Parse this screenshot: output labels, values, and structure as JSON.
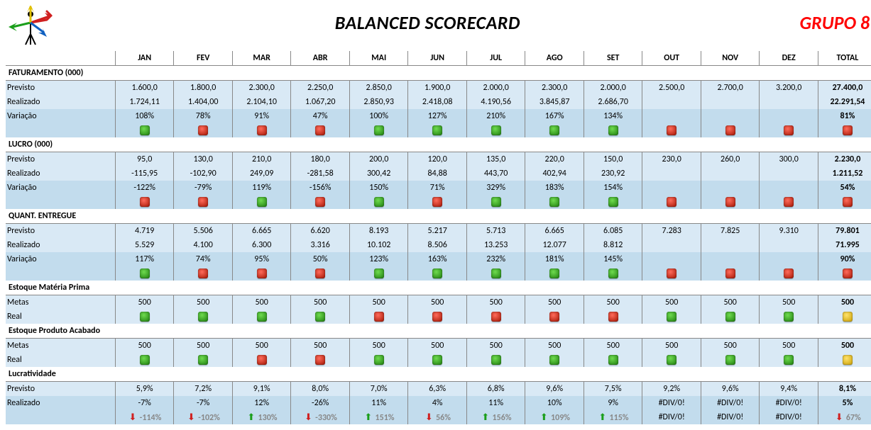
{
  "meta": {
    "title": "BALANCED SCORECARD",
    "group_label": "GRUPO 8"
  },
  "months": [
    "JAN",
    "FEV",
    "MAR",
    "ABR",
    "MAI",
    "JUN",
    "JUL",
    "AGO",
    "SET",
    "OUT",
    "NOV",
    "DEZ",
    "TOTAL"
  ],
  "row_labels": {
    "previsto": "Previsto",
    "realizado": "Realizado",
    "variacao": "Variação",
    "metas": "Metas",
    "real": "Real"
  },
  "colors": {
    "title": "#000000",
    "group": "#ff0000",
    "row_light": "#d9e9f5",
    "row_med": "#c2dced",
    "border": "#888888",
    "indicator_green_light": "#6fdb4f",
    "indicator_green_dark": "#1a7a0c",
    "indicator_red_light": "#ff6b5b",
    "indicator_red_dark": "#a01200",
    "indicator_yellow_light": "#ffe26b",
    "indicator_yellow_dark": "#c79d00",
    "arrow_up": "#1a9e1a",
    "arrow_down": "#d02020",
    "gray_text": "#888888",
    "logo_arrow_red": "#d02020",
    "logo_arrow_green": "#1a9e1a",
    "logo_arrow_yellow": "#e0c000",
    "logo_arrow_blue": "#1060c0"
  },
  "sections": [
    {
      "name": "FATURAMENTO (000)",
      "rows": [
        {
          "key": "previsto",
          "cells": [
            "1.600,0",
            "1.800,0",
            "2.300,0",
            "2.250,0",
            "2.850,0",
            "1.900,0",
            "2.000,0",
            "2.300,0",
            "2.000,0",
            "2.500,0",
            "2.700,0",
            "3.200,0",
            "27.400,0"
          ],
          "bold_last": true,
          "bg": "blue1"
        },
        {
          "key": "realizado",
          "cells": [
            "1.724,11",
            "1.404,00",
            "2.104,10",
            "1.067,20",
            "2.850,93",
            "2.418,08",
            "4.190,56",
            "3.845,87",
            "2.686,70",
            "",
            "",
            "",
            "22.291,54"
          ],
          "bold_last": true,
          "bg": "blue1"
        },
        {
          "key": "variacao",
          "cells": [
            "108%",
            "78%",
            "91%",
            "47%",
            "100%",
            "127%",
            "210%",
            "167%",
            "134%",
            "",
            "",
            "",
            "81%"
          ],
          "bold_last": true,
          "bg": "blue2"
        },
        {
          "key": "ind",
          "type": "indicator",
          "cells": [
            "green",
            "red",
            "red",
            "red",
            "green",
            "green",
            "green",
            "green",
            "green",
            "red",
            "red",
            "red",
            "red"
          ],
          "bg": "blue2"
        }
      ]
    },
    {
      "name": "LUCRO (000)",
      "rows": [
        {
          "key": "previsto",
          "cells": [
            "95,0",
            "130,0",
            "210,0",
            "180,0",
            "200,0",
            "120,0",
            "135,0",
            "220,0",
            "150,0",
            "230,0",
            "260,0",
            "300,0",
            "2.230,0"
          ],
          "bold_last": true,
          "bg": "blue1"
        },
        {
          "key": "realizado",
          "cells": [
            "-115,95",
            "-102,90",
            "249,09",
            "-281,58",
            "300,42",
            "84,88",
            "443,70",
            "402,94",
            "230,92",
            "",
            "",
            "",
            "1.211,52"
          ],
          "bold_last": true,
          "bg": "blue1"
        },
        {
          "key": "variacao",
          "cells": [
            "-122%",
            "-79%",
            "119%",
            "-156%",
            "150%",
            "71%",
            "329%",
            "183%",
            "154%",
            "",
            "",
            "",
            "54%"
          ],
          "bold_last": true,
          "bg": "blue2"
        },
        {
          "key": "ind",
          "type": "indicator",
          "cells": [
            "red",
            "red",
            "green",
            "red",
            "green",
            "red",
            "green",
            "green",
            "green",
            "red",
            "red",
            "red",
            "red"
          ],
          "bg": "blue2"
        }
      ]
    },
    {
      "name": "QUANT. ENTREGUE",
      "rows": [
        {
          "key": "previsto",
          "cells": [
            "4.719",
            "5.506",
            "6.665",
            "6.620",
            "8.193",
            "5.217",
            "5.713",
            "6.665",
            "6.085",
            "7.283",
            "7.825",
            "9.310",
            "79.801"
          ],
          "bold_last": true,
          "bg": "blue1"
        },
        {
          "key": "realizado",
          "cells": [
            "5.529",
            "4.100",
            "6.300",
            "3.316",
            "10.102",
            "8.506",
            "13.253",
            "12.077",
            "8.812",
            "",
            "",
            "",
            "71.995"
          ],
          "bold_last": true,
          "bg": "blue1"
        },
        {
          "key": "variacao",
          "cells": [
            "117%",
            "74%",
            "95%",
            "50%",
            "123%",
            "163%",
            "232%",
            "181%",
            "145%",
            "",
            "",
            "",
            "90%"
          ],
          "bold_last": true,
          "bg": "blue2"
        },
        {
          "key": "ind",
          "type": "indicator",
          "cells": [
            "green",
            "red",
            "red",
            "red",
            "green",
            "green",
            "green",
            "green",
            "green",
            "red",
            "red",
            "red",
            "red"
          ],
          "bg": "blue2"
        }
      ]
    },
    {
      "name": "Estoque  Matéria Prima",
      "rows": [
        {
          "key": "metas",
          "cells": [
            "500",
            "500",
            "500",
            "500",
            "500",
            "500",
            "500",
            "500",
            "500",
            "500",
            "500",
            "500",
            "500"
          ],
          "bold_last": true,
          "bg": "blue1"
        },
        {
          "key": "real",
          "type": "indicator",
          "cells": [
            "green",
            "green",
            "green",
            "green",
            "red",
            "red",
            "red",
            "red",
            "red",
            "green",
            "green",
            "green",
            "yellow"
          ],
          "bg": "blue1"
        }
      ]
    },
    {
      "name": "Estoque Produto Acabado",
      "rows": [
        {
          "key": "metas",
          "cells": [
            "500",
            "500",
            "500",
            "500",
            "500",
            "500",
            "500",
            "500",
            "500",
            "500",
            "500",
            "500",
            "500"
          ],
          "bold_last": true,
          "bg": "blue1"
        },
        {
          "key": "real",
          "type": "indicator",
          "cells": [
            "green",
            "green",
            "red",
            "red",
            "green",
            "green",
            "green",
            "green",
            "green",
            "green",
            "green",
            "green",
            "yellow"
          ],
          "bg": "blue1"
        }
      ]
    },
    {
      "name": "Lucratividade",
      "rows": [
        {
          "key": "previsto",
          "cells": [
            "5,9%",
            "7,2%",
            "9,1%",
            "8,0%",
            "7,0%",
            "6,3%",
            "6,8%",
            "9,6%",
            "7,5%",
            "9,2%",
            "9,6%",
            "9,4%",
            "8,1%"
          ],
          "bold_last": true,
          "bg": "blue1"
        },
        {
          "key": "realizado",
          "cells": [
            "-7%",
            "-7%",
            "12%",
            "-26%",
            "11%",
            "4%",
            "11%",
            "10%",
            "9%",
            "#DIV/0!",
            "#DIV/0!",
            "#DIV/0!",
            "5%"
          ],
          "bold_last": true,
          "bg": "blue2"
        },
        {
          "key": "lucrat_arrow",
          "type": "arrow",
          "cells": [
            {
              "dir": "down",
              "val": "-114%"
            },
            {
              "dir": "down",
              "val": "-102%"
            },
            {
              "dir": "up",
              "val": "130%"
            },
            {
              "dir": "down",
              "val": "-330%"
            },
            {
              "dir": "up",
              "val": "151%"
            },
            {
              "dir": "down",
              "val": "56%"
            },
            {
              "dir": "up",
              "val": "156%"
            },
            {
              "dir": "up",
              "val": "109%"
            },
            {
              "dir": "up",
              "val": "115%"
            },
            {
              "dir": "none",
              "val": "#DIV/0!"
            },
            {
              "dir": "none",
              "val": "#DIV/0!"
            },
            {
              "dir": "none",
              "val": "#DIV/0!"
            },
            {
              "dir": "down",
              "val": "67%"
            }
          ],
          "bg": "blue2"
        }
      ]
    }
  ]
}
